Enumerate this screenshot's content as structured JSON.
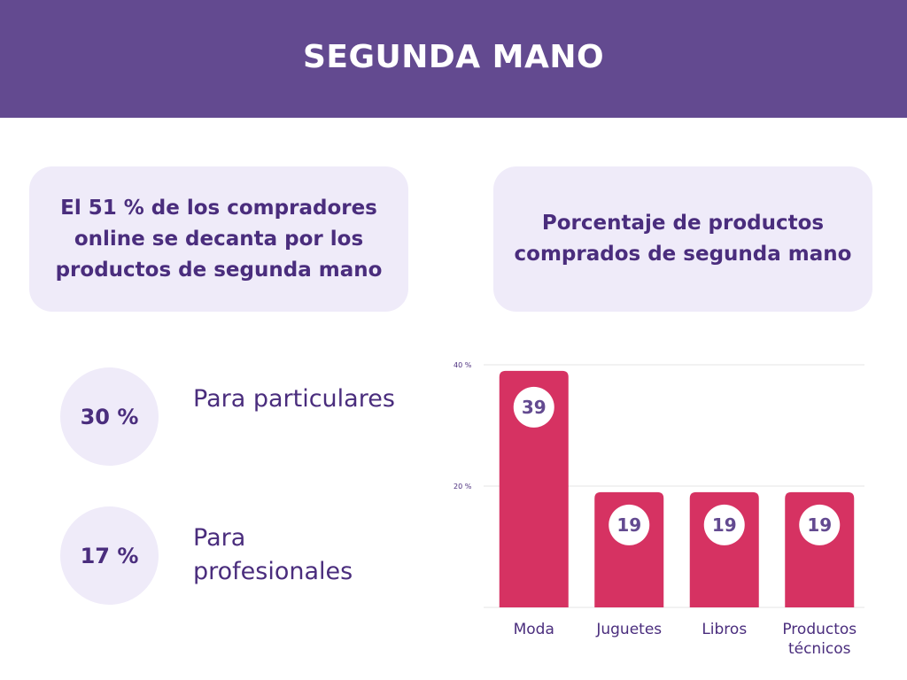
{
  "header": {
    "title": "SEGUNDA MANO"
  },
  "summary_card": {
    "text": "El 51 % de los compradores online se decanta por los productos de segunda mano"
  },
  "chart_card": {
    "text": "Porcentaje de productos comprados de segunda mano"
  },
  "stats": [
    {
      "value": "30 %",
      "label": "Para particulares"
    },
    {
      "value": "17 %",
      "label": "Para profesionales"
    }
  ],
  "colors": {
    "header": "#634a90",
    "card": "#efebf9",
    "text": "#4a2d7d",
    "bar": "#d63262"
  },
  "chart_data": {
    "type": "bar",
    "title": "Porcentaje de productos comprados de segunda mano",
    "categories": [
      "Moda",
      "Juguetes",
      "Libros",
      "Productos técnicos"
    ],
    "category_lines": [
      [
        "Moda"
      ],
      [
        "Juguetes"
      ],
      [
        "Libros"
      ],
      [
        "Productos",
        "técnicos"
      ]
    ],
    "values": [
      39,
      19,
      19,
      19
    ],
    "ylim": [
      0,
      40
    ],
    "yticks": [
      20,
      40
    ],
    "ytick_labels": [
      "20 %",
      "40 %"
    ],
    "grid": true,
    "xlabel": "",
    "ylabel": ""
  }
}
